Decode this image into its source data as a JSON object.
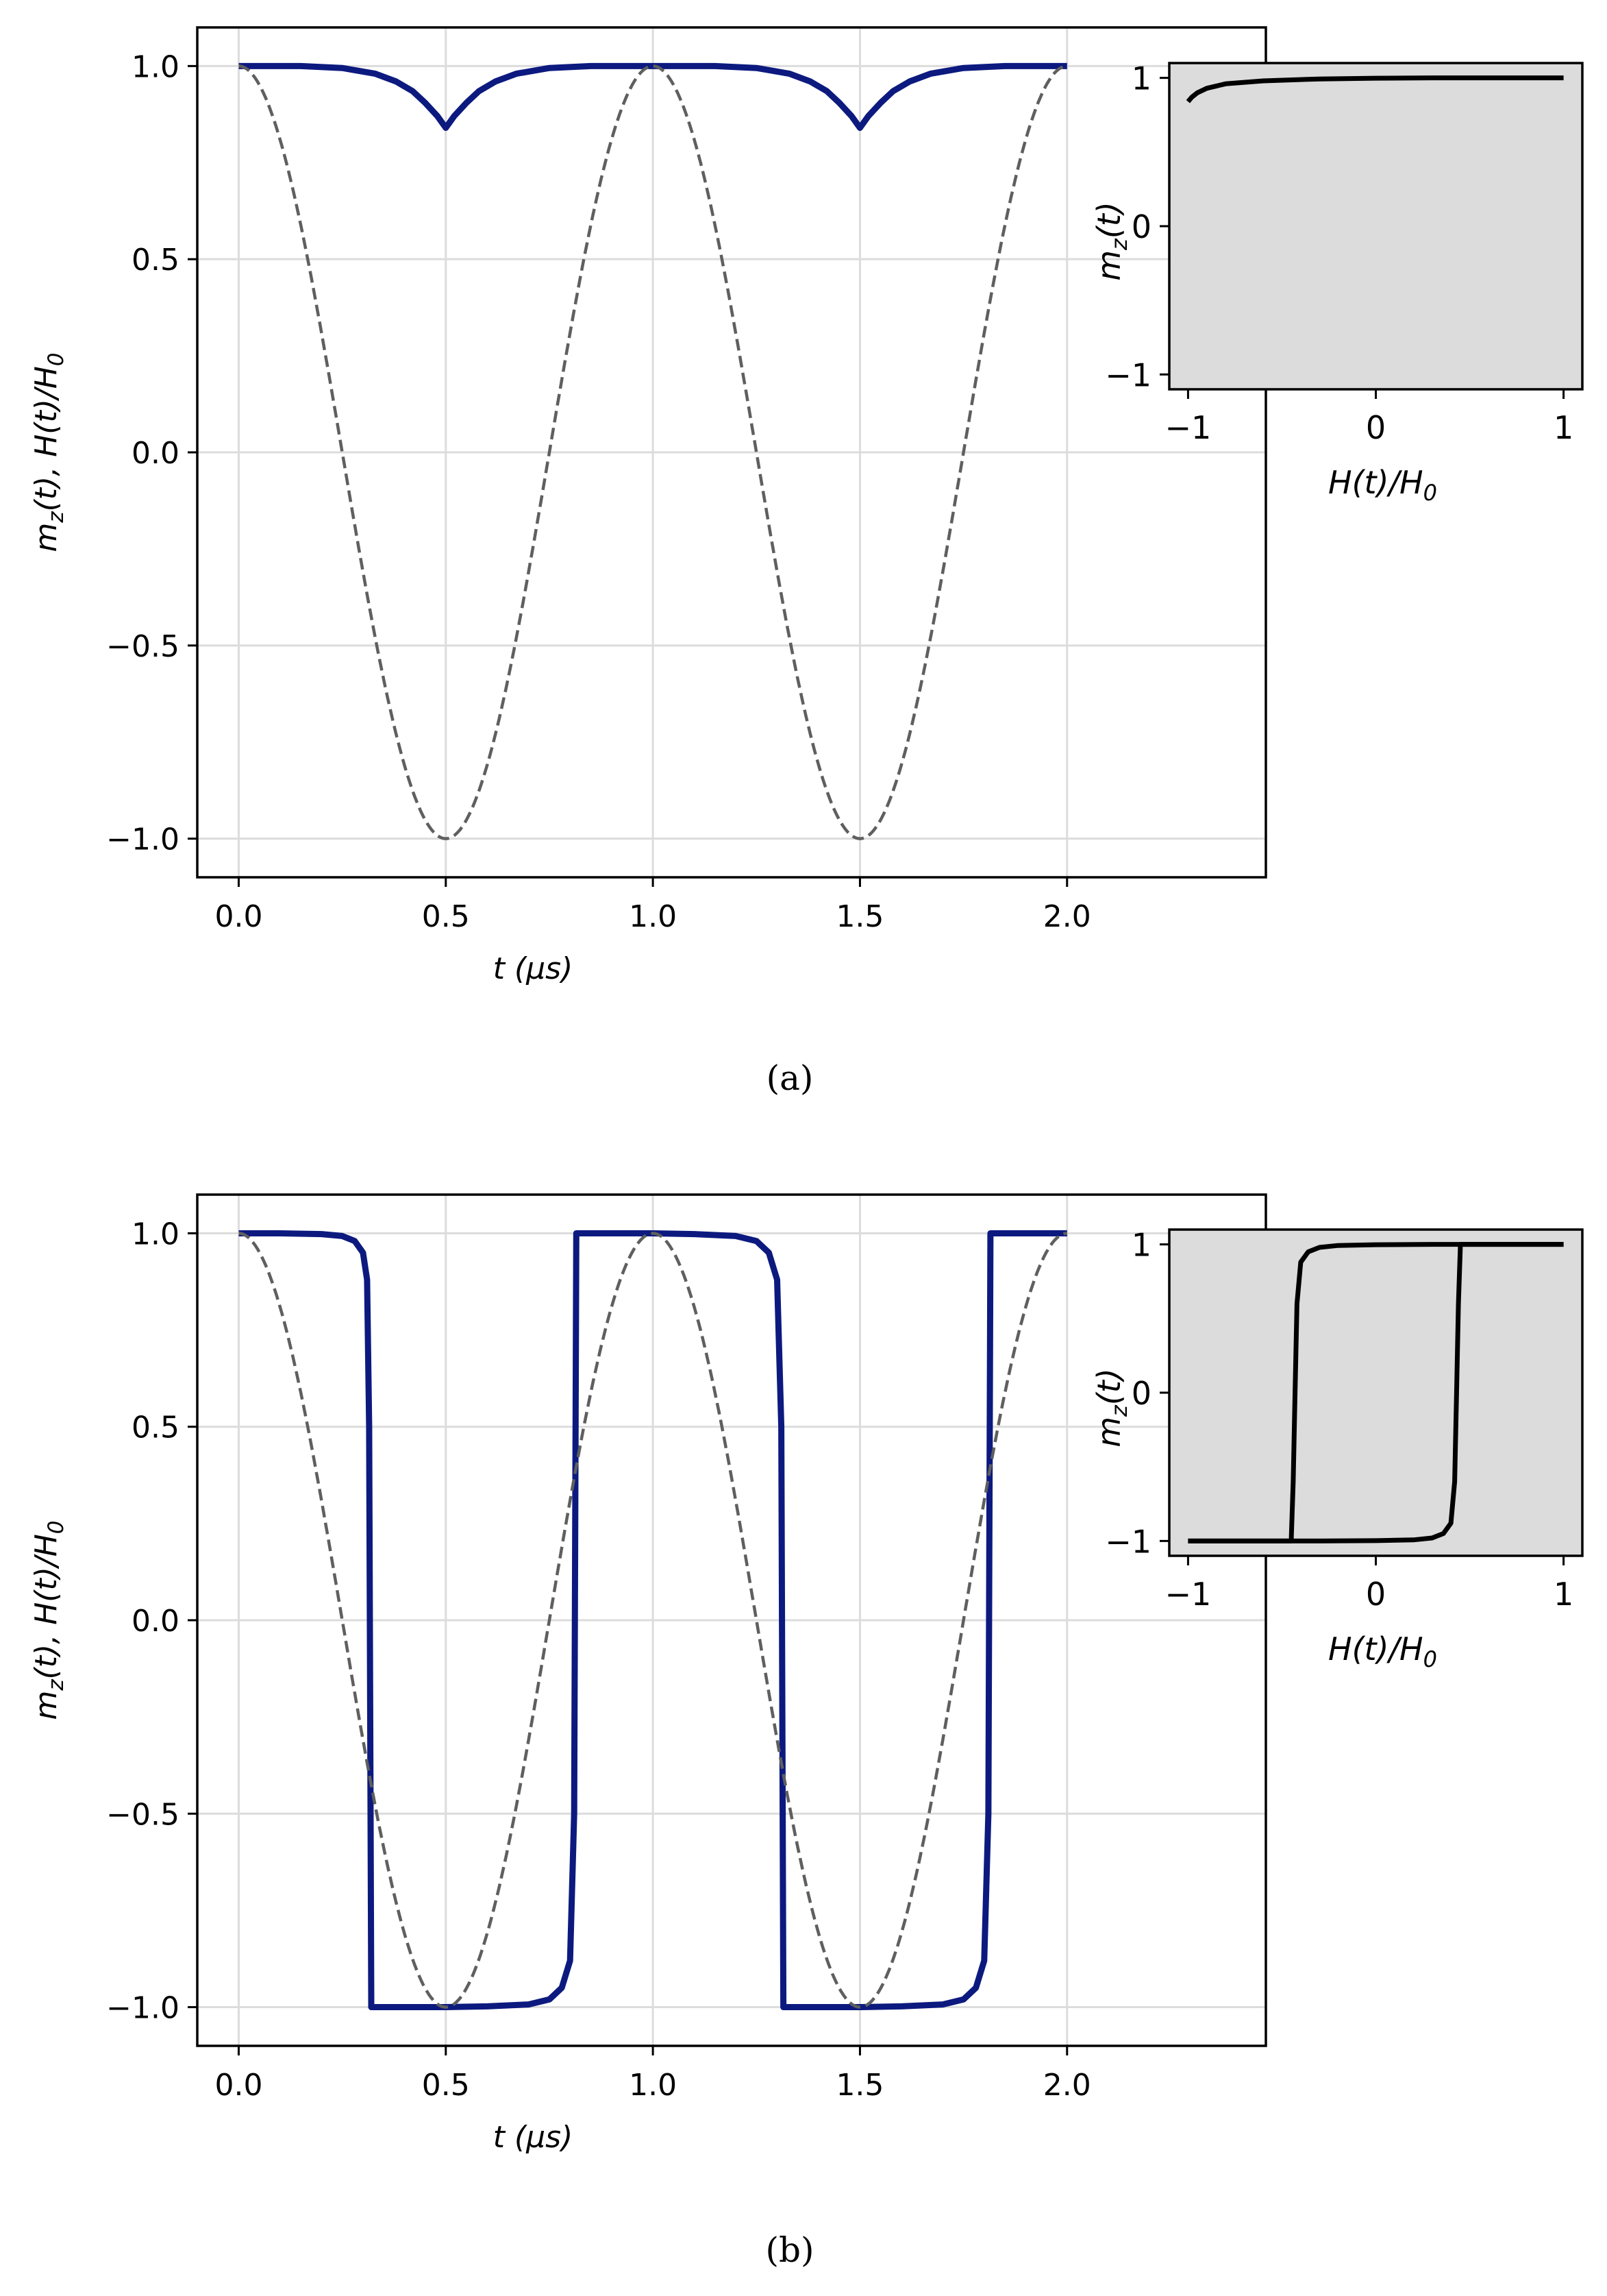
{
  "chart_data": [
    {
      "panel": "a",
      "caption": "(a)",
      "main": {
        "type": "line",
        "xlabel": "t (μs)",
        "ylabel": "m_z(t), H(t)/H_0",
        "xlim": [
          -0.1,
          2.48
        ],
        "ylim": [
          -1.1,
          1.1
        ],
        "xticks": [
          "0.0",
          "0.5",
          "1.0",
          "1.5",
          "2.0"
        ],
        "yticks": [
          "−1.0",
          "−0.5",
          "0.0",
          "0.5",
          "1.0"
        ],
        "grid": true,
        "series": [
          {
            "role": "magnetization",
            "style": "solid",
            "color": "#0c1a7f",
            "x": [
              0.0,
              0.15,
              0.25,
              0.33,
              0.38,
              0.42,
              0.45,
              0.48,
              0.5,
              0.52,
              0.55,
              0.58,
              0.62,
              0.67,
              0.75,
              0.85,
              1.0,
              1.15,
              1.25,
              1.33,
              1.38,
              1.42,
              1.45,
              1.48,
              1.5,
              1.52,
              1.55,
              1.58,
              1.62,
              1.67,
              1.75,
              1.85,
              2.0
            ],
            "y": [
              1.0,
              1.0,
              0.995,
              0.98,
              0.96,
              0.935,
              0.905,
              0.87,
              0.84,
              0.87,
              0.905,
              0.935,
              0.96,
              0.98,
              0.995,
              1.0,
              1.0,
              1.0,
              0.995,
              0.98,
              0.96,
              0.935,
              0.905,
              0.87,
              0.84,
              0.87,
              0.905,
              0.935,
              0.96,
              0.98,
              0.995,
              1.0,
              1.0
            ]
          },
          {
            "role": "field",
            "style": "dashed",
            "color": "#5f5f5f",
            "function": "cos(2*pi*t)",
            "t_range": [
              0,
              2
            ]
          }
        ]
      },
      "inset": {
        "type": "line",
        "xlabel": "H(t)/H_0",
        "ylabel": "m_z(t)",
        "xlim": [
          -1.1,
          1.1
        ],
        "ylim": [
          -1.1,
          1.1
        ],
        "xticks": [
          "−1",
          "0",
          "1"
        ],
        "yticks": [
          "−1",
          "0",
          "1"
        ],
        "background": "#dcdcdc",
        "series": [
          {
            "color": "#000000",
            "x": [
              -1.0,
              -0.98,
              -0.95,
              -0.9,
              -0.8,
              -0.6,
              -0.3,
              0.0,
              0.3,
              0.6,
              1.0
            ],
            "y": [
              0.84,
              0.87,
              0.9,
              0.93,
              0.96,
              0.98,
              0.993,
              0.998,
              1.0,
              1.0,
              1.0
            ]
          }
        ]
      }
    },
    {
      "panel": "b",
      "caption": "(b)",
      "main": {
        "type": "line",
        "xlabel": "t (μs)",
        "ylabel": "m_z(t), H(t)/H_0",
        "xlim": [
          -0.1,
          2.48
        ],
        "ylim": [
          -1.1,
          1.1
        ],
        "xticks": [
          "0.0",
          "0.5",
          "1.0",
          "1.5",
          "2.0"
        ],
        "yticks": [
          "−1.0",
          "−0.5",
          "0.0",
          "0.5",
          "1.0"
        ],
        "grid": true,
        "series": [
          {
            "role": "magnetization",
            "style": "solid",
            "color": "#0c1a7f",
            "x": [
              0.0,
              0.1,
              0.2,
              0.25,
              0.28,
              0.3,
              0.31,
              0.315,
              0.32,
              0.325,
              0.33,
              0.4,
              0.5,
              0.6,
              0.7,
              0.75,
              0.78,
              0.8,
              0.81,
              0.815,
              0.82,
              0.825,
              0.83,
              0.9,
              1.0,
              1.1,
              1.2,
              1.25,
              1.28,
              1.3,
              1.31,
              1.315,
              1.32,
              1.325,
              1.33,
              1.4,
              1.5,
              1.6,
              1.7,
              1.75,
              1.78,
              1.8,
              1.81,
              1.815,
              1.82,
              1.825,
              1.83,
              1.9,
              2.0
            ],
            "y": [
              1.0,
              1.0,
              0.998,
              0.993,
              0.98,
              0.95,
              0.88,
              0.5,
              -1.0,
              -1.0,
              -1.0,
              -1.0,
              -1.0,
              -0.998,
              -0.993,
              -0.98,
              -0.95,
              -0.88,
              -0.5,
              1.0,
              1.0,
              1.0,
              1.0,
              1.0,
              1.0,
              0.998,
              0.993,
              0.98,
              0.95,
              0.88,
              0.5,
              -1.0,
              -1.0,
              -1.0,
              -1.0,
              -1.0,
              -1.0,
              -0.998,
              -0.993,
              -0.98,
              -0.95,
              -0.88,
              -0.5,
              1.0,
              1.0,
              1.0,
              1.0,
              1.0,
              1.0
            ]
          },
          {
            "role": "field",
            "style": "dashed",
            "color": "#5f5f5f",
            "function": "cos(2*pi*t)",
            "t_range": [
              0,
              2
            ]
          }
        ]
      },
      "inset": {
        "type": "line",
        "xlabel": "H(t)/H_0",
        "ylabel": "m_z(t)",
        "xlim": [
          -1.1,
          1.1
        ],
        "ylim": [
          -1.1,
          1.1
        ],
        "xticks": [
          "−1",
          "0",
          "1"
        ],
        "yticks": [
          "−1",
          "0",
          "1"
        ],
        "background": "#dcdcdc",
        "series": [
          {
            "color": "#000000",
            "x": [
              1.0,
              0.6,
              0.3,
              0.0,
              -0.2,
              -0.3,
              -0.36,
              -0.4,
              -0.42,
              -0.43,
              -0.44,
              -0.45,
              -0.45,
              -0.6,
              -0.8,
              -1.0
            ],
            "y": [
              1.0,
              1.0,
              1.0,
              0.998,
              0.993,
              0.98,
              0.95,
              0.88,
              0.6,
              0.0,
              -0.6,
              -0.97,
              -1.0,
              -1.0,
              -1.0,
              -1.0
            ]
          },
          {
            "color": "#000000",
            "x": [
              -1.0,
              -0.6,
              -0.3,
              0.0,
              0.2,
              0.3,
              0.36,
              0.4,
              0.42,
              0.43,
              0.44,
              0.45,
              0.45,
              0.6,
              0.8,
              1.0
            ],
            "y": [
              -1.0,
              -1.0,
              -1.0,
              -0.998,
              -0.993,
              -0.98,
              -0.95,
              -0.88,
              -0.6,
              0.0,
              0.6,
              0.97,
              1.0,
              1.0,
              1.0,
              1.0
            ]
          }
        ]
      }
    }
  ]
}
